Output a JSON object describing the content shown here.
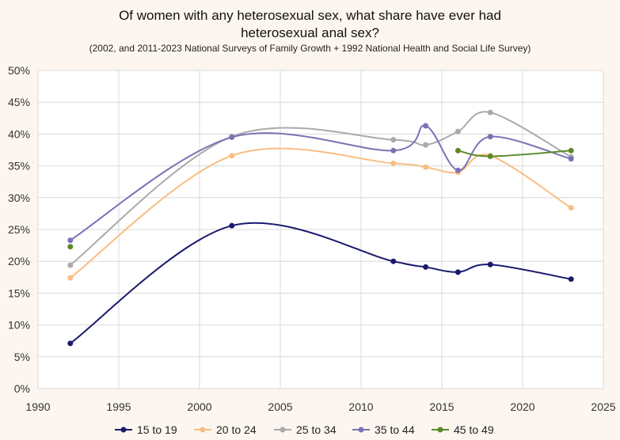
{
  "chart_data": {
    "type": "line",
    "title": "Of women with any heterosexual sex, what share have ever had",
    "title_line2": "heterosexual anal sex?",
    "subtitle": "(2002, and 2011-2023 National Surveys of Family Growth + 1992 National Health and Social Life Survey)",
    "xlabel": "",
    "ylabel": "",
    "xlim": [
      1990,
      2025
    ],
    "ylim": [
      0,
      50
    ],
    "x_ticks": [
      "1990",
      "1995",
      "2000",
      "2005",
      "2010",
      "2015",
      "2020",
      "2025"
    ],
    "y_ticks": [
      "0%",
      "5%",
      "10%",
      "15%",
      "20%",
      "25%",
      "30%",
      "35%",
      "40%",
      "45%",
      "50%"
    ],
    "grid": true,
    "legend_position": "bottom",
    "series": [
      {
        "name": "15 to 19",
        "color": "#1a1a6e",
        "x": [
          1992,
          2002,
          2012,
          2014,
          2016,
          2018,
          2023
        ],
        "y": [
          7.1,
          25.6,
          20.0,
          19.1,
          18.3,
          19.5,
          17.2
        ]
      },
      {
        "name": "20 to 24",
        "color": "#f9bd82",
        "x": [
          1992,
          2002,
          2012,
          2014,
          2016,
          2018,
          2023
        ],
        "y": [
          17.4,
          36.6,
          35.4,
          34.8,
          34.0,
          36.6,
          28.4
        ]
      },
      {
        "name": "25 to 34",
        "color": "#aaaaaa",
        "x": [
          1992,
          2002,
          2012,
          2014,
          2016,
          2018,
          2023
        ],
        "y": [
          19.4,
          39.6,
          39.1,
          38.3,
          40.4,
          43.4,
          36.4
        ]
      },
      {
        "name": "35 to 44",
        "color": "#7b73b5",
        "x": [
          1992,
          2002,
          2012,
          2014,
          2016,
          2018,
          2023
        ],
        "y": [
          23.3,
          39.5,
          37.4,
          41.3,
          34.3,
          39.6,
          36.1
        ]
      },
      {
        "name": "45 to 49",
        "color": "#5a8a28",
        "x": [
          1992,
          2016,
          2018,
          2023
        ],
        "y": [
          22.3,
          37.4,
          36.5,
          37.4
        ],
        "gap_after_first": true
      }
    ]
  }
}
